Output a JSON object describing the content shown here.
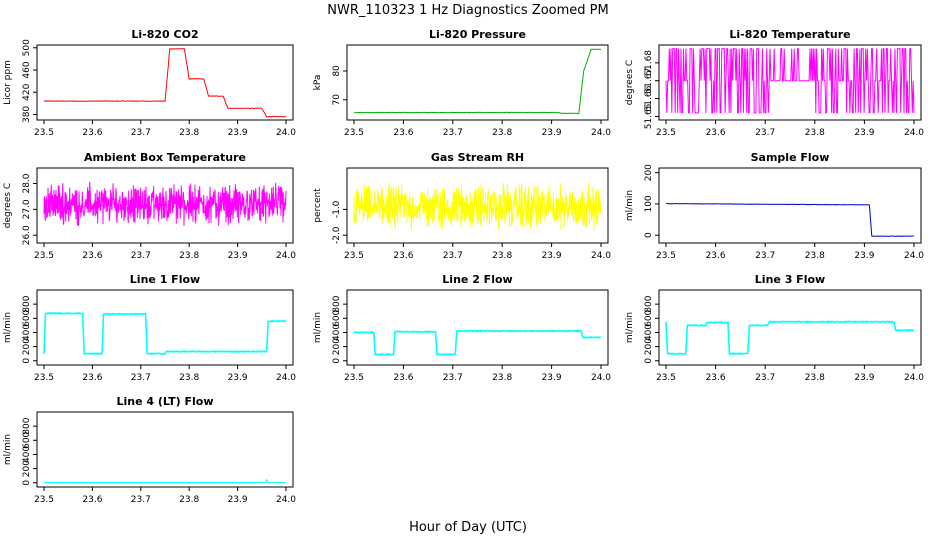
{
  "title": "NWR_110323  1 Hz Diagnostics Zoomed PM",
  "x_label": "Hour of Day (UTC)",
  "chart_data": [
    {
      "type": "line",
      "title": "Li-820 CO2",
      "ylabel": "Licor ppm",
      "color": "#ff0000",
      "xlim": [
        23.5,
        24.0
      ],
      "ylim": [
        370,
        505
      ],
      "xticks": [
        "23.5",
        "23.6",
        "23.7",
        "23.8",
        "23.9",
        "24.0"
      ],
      "yticks": [
        "380",
        "420",
        "460",
        "500"
      ],
      "kind": "step",
      "noise": 1,
      "series": [
        {
          "x": [
            23.5,
            23.75,
            23.76,
            23.79,
            23.8,
            23.83,
            23.84,
            23.87,
            23.88,
            23.95,
            23.96,
            23.97,
            24.0
          ],
          "y": [
            404,
            404,
            498,
            498,
            444,
            444,
            413,
            413,
            391,
            391,
            376,
            376,
            376
          ]
        }
      ]
    },
    {
      "type": "line",
      "title": "Li-820 Pressure",
      "ylabel": "kPa",
      "color": "#00b000",
      "xlim": [
        23.5,
        24.0
      ],
      "ylim": [
        63,
        89
      ],
      "xticks": [
        "23.5",
        "23.6",
        "23.7",
        "23.8",
        "23.9",
        "24.0"
      ],
      "yticks": [
        "70",
        "80"
      ],
      "kind": "step",
      "noise": 0.15,
      "series": [
        {
          "x": [
            23.5,
            23.915,
            23.92,
            23.955,
            23.965,
            23.98,
            24.0
          ],
          "y": [
            65.6,
            65.6,
            65.3,
            65.3,
            80,
            87.5,
            87.5
          ]
        }
      ]
    },
    {
      "type": "line",
      "title": "Li-820 Temperature",
      "ylabel": "degrees C",
      "color": "#ff00ff",
      "xlim": [
        23.5,
        24.0
      ],
      "ylim": [
        51.648,
        51.69
      ],
      "xticks": [
        "23.5",
        "23.6",
        "23.7",
        "23.8",
        "23.9",
        "24.0"
      ],
      "yticks": [
        "51.65",
        "51.66",
        "51.67",
        "51.68"
      ],
      "kind": "levels",
      "levels": [
        51.688,
        51.67,
        51.652
      ],
      "series": [
        {
          "x": [
            23.5,
            24.0
          ],
          "y": [
            51.67,
            51.67
          ]
        }
      ]
    },
    {
      "type": "line",
      "title": "Ambient Box Temperature",
      "ylabel": "degrees C",
      "color": "#ff00ff",
      "xlim": [
        23.5,
        24.0
      ],
      "ylim": [
        25.7,
        28.6
      ],
      "xticks": [
        "23.5",
        "23.6",
        "23.7",
        "23.8",
        "23.9",
        "24.0"
      ],
      "yticks": [
        "26.0",
        "27.0",
        "28.0"
      ],
      "kind": "noise",
      "noise": 0.9,
      "series": [
        {
          "x": [
            23.5,
            24.0
          ],
          "y": [
            27.2,
            27.2
          ]
        }
      ]
    },
    {
      "type": "line",
      "title": "Gas Stream RH",
      "ylabel": "percent",
      "color": "#ffff00",
      "xlim": [
        23.5,
        24.0
      ],
      "ylim": [
        -2.3,
        0.6
      ],
      "xticks": [
        "23.5",
        "23.6",
        "23.7",
        "23.8",
        "23.9",
        "24.0"
      ],
      "yticks": [
        "-2.0",
        "-1.0"
      ],
      "kind": "noise",
      "noise": 1.0,
      "series": [
        {
          "x": [
            23.5,
            24.0
          ],
          "y": [
            -0.9,
            -0.9
          ]
        }
      ]
    },
    {
      "type": "line",
      "title": "Sample Flow",
      "ylabel": "ml/min",
      "color": "#0000cc",
      "xlim": [
        23.5,
        24.0
      ],
      "ylim": [
        -25,
        215
      ],
      "xticks": [
        "23.5",
        "23.6",
        "23.7",
        "23.8",
        "23.9",
        "24.0"
      ],
      "yticks": [
        "0",
        "100",
        "200"
      ],
      "kind": "step",
      "noise": 1,
      "series": [
        {
          "x": [
            23.5,
            23.91,
            23.915,
            24.0
          ],
          "y": [
            101,
            97,
            -3,
            -3
          ]
        }
      ]
    },
    {
      "type": "line",
      "title": "Line 1 Flow",
      "ylabel": "ml/min",
      "color": "#00ffff",
      "xlim": [
        23.5,
        24.0
      ],
      "ylim": [
        -60,
        1000
      ],
      "xticks": [
        "23.5",
        "23.6",
        "23.7",
        "23.8",
        "23.9",
        "24.0"
      ],
      "yticks": [
        "0",
        "200",
        "400",
        "600",
        "800"
      ],
      "kind": "step",
      "noise": 12,
      "series": [
        {
          "x": [
            23.5,
            23.503,
            23.58,
            23.583,
            23.62,
            23.623,
            23.71,
            23.713,
            23.75,
            23.753,
            23.96,
            23.963,
            24.0
          ],
          "y": [
            100,
            670,
            670,
            100,
            100,
            660,
            660,
            100,
            100,
            130,
            130,
            560,
            560
          ]
        }
      ]
    },
    {
      "type": "line",
      "title": "Line 2 Flow",
      "ylabel": "ml/min",
      "color": "#00ffff",
      "xlim": [
        23.5,
        24.0
      ],
      "ylim": [
        -60,
        1000
      ],
      "xticks": [
        "23.5",
        "23.6",
        "23.7",
        "23.8",
        "23.9",
        "24.0"
      ],
      "yticks": [
        "0",
        "200",
        "400",
        "600",
        "800"
      ],
      "kind": "step",
      "noise": 12,
      "series": [
        {
          "x": [
            23.5,
            23.54,
            23.543,
            23.58,
            23.583,
            23.665,
            23.668,
            23.705,
            23.708,
            23.96,
            23.963,
            24.0
          ],
          "y": [
            400,
            400,
            90,
            90,
            410,
            410,
            90,
            90,
            420,
            420,
            330,
            330
          ]
        }
      ]
    },
    {
      "type": "line",
      "title": "Line 3 Flow",
      "ylabel": "ml/min",
      "color": "#00ffff",
      "xlim": [
        23.5,
        24.0
      ],
      "ylim": [
        -60,
        1000
      ],
      "xticks": [
        "23.5",
        "23.6",
        "23.7",
        "23.8",
        "23.9",
        "24.0"
      ],
      "yticks": [
        "0",
        "200",
        "400",
        "600",
        "800"
      ],
      "kind": "step",
      "noise": 12,
      "series": [
        {
          "x": [
            23.5,
            23.503,
            23.54,
            23.543,
            23.58,
            23.583,
            23.625,
            23.628,
            23.665,
            23.668,
            23.705,
            23.708,
            23.96,
            23.963,
            24.0
          ],
          "y": [
            550,
            100,
            100,
            500,
            500,
            540,
            540,
            100,
            100,
            500,
            500,
            550,
            550,
            430,
            430
          ]
        }
      ]
    },
    {
      "type": "line",
      "title": "Line 4 (LT) Flow",
      "ylabel": "ml/min",
      "color": "#00ffff",
      "xlim": [
        23.5,
        24.0
      ],
      "ylim": [
        -60,
        1000
      ],
      "xticks": [
        "23.5",
        "23.6",
        "23.7",
        "23.8",
        "23.9",
        "24.0"
      ],
      "yticks": [
        "0",
        "200",
        "400",
        "600",
        "800"
      ],
      "kind": "step",
      "noise": 2,
      "series": [
        {
          "x": [
            23.5,
            23.958,
            23.96,
            23.962,
            24.0
          ],
          "y": [
            3,
            3,
            40,
            3,
            3
          ]
        }
      ]
    }
  ]
}
